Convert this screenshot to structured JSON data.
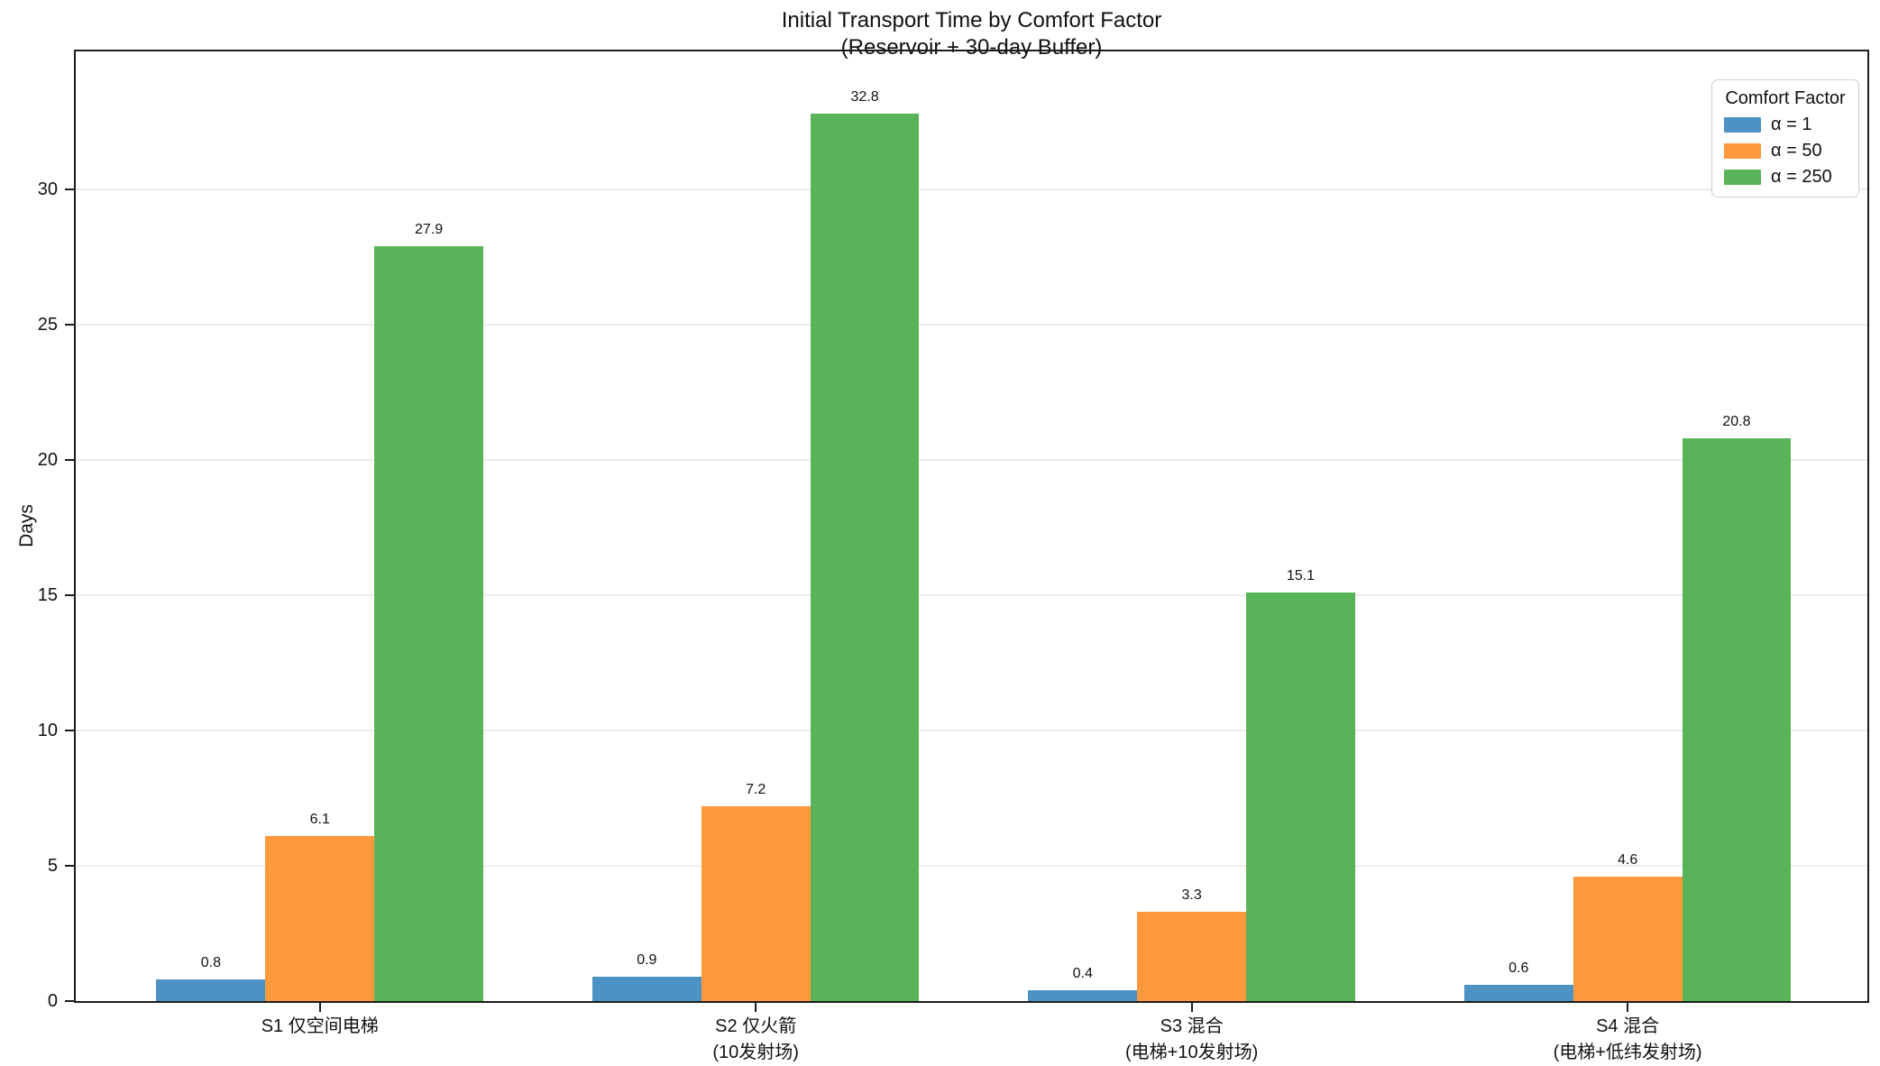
{
  "chart_data": {
    "type": "bar",
    "title": "Initial Transport Time by Comfort Factor\n(Reservoir + 30-day Buffer)",
    "title_lines": [
      "Initial Transport Time by Comfort Factor",
      "(Reservoir + 30-day Buffer)"
    ],
    "xlabel": "",
    "ylabel": "Days",
    "legend_title": "Comfort Factor",
    "legend_position": "upper right",
    "grid": true,
    "categories": [
      "S1 仅空间电梯",
      "S2 仅火箭\n(10发射场)",
      "S3 混合\n(电梯+10发射场)",
      "S4 混合\n(电梯+低纬发射场)"
    ],
    "series": [
      {
        "name": "α = 1",
        "color": "#4c92c3",
        "values": [
          0.8,
          0.9,
          0.4,
          0.6
        ]
      },
      {
        "name": "α = 50",
        "color": "#ff993c",
        "values": [
          6.1,
          7.2,
          3.3,
          4.6
        ]
      },
      {
        "name": "α = 250",
        "color": "#59b359",
        "values": [
          27.9,
          32.8,
          15.1,
          20.8
        ]
      }
    ],
    "yticks": [
      0,
      5,
      10,
      15,
      20,
      25,
      30
    ],
    "ylim": [
      0,
      35.1
    ],
    "bar_width": 0.25,
    "value_labels": true
  }
}
